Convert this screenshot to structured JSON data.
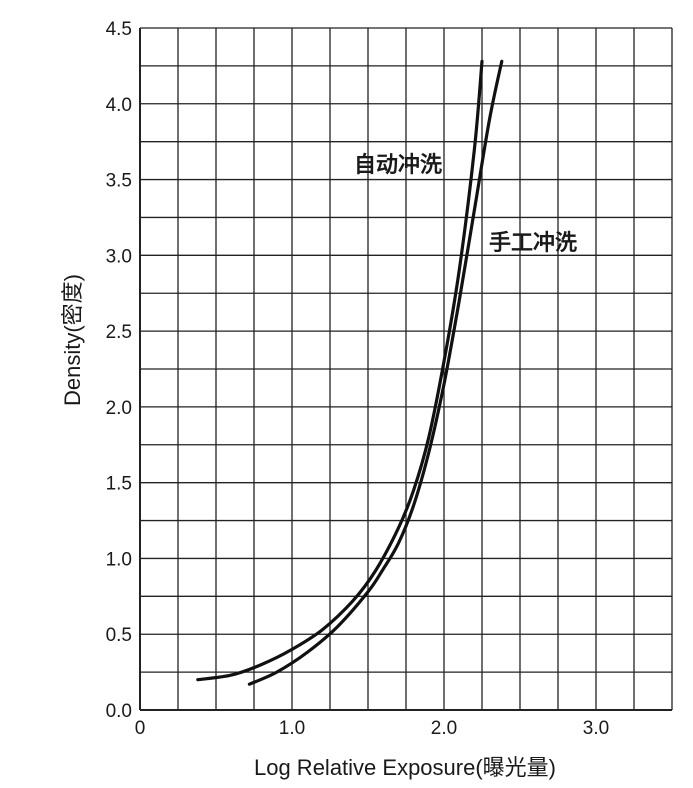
{
  "chart_data": {
    "type": "line",
    "xlabel": "Log Relative Exposure(曝光量)",
    "ylabel": "Density(密度)",
    "xlim": [
      0,
      3.5
    ],
    "ylim": [
      0,
      4.5
    ],
    "x_ticks": [
      "0",
      "1.0",
      "2.0",
      "3.0"
    ],
    "y_ticks": [
      "0.0",
      "0.5",
      "1.0",
      "1.5",
      "2.0",
      "2.5",
      "3.0",
      "3.5",
      "4.0",
      "4.5"
    ],
    "grid": true,
    "colors": {
      "line": "#111111",
      "grid": "#222222"
    },
    "series": [
      {
        "name": "自动冲洗",
        "x": [
          0.38,
          0.6,
          0.8,
          1.0,
          1.2,
          1.4,
          1.55,
          1.7,
          1.8,
          1.9,
          2.0,
          2.1,
          2.2,
          2.25
        ],
        "y": [
          0.2,
          0.23,
          0.3,
          0.4,
          0.53,
          0.72,
          0.92,
          1.2,
          1.45,
          1.8,
          2.3,
          2.9,
          3.7,
          4.28
        ]
      },
      {
        "name": "手工冲洗",
        "x": [
          0.72,
          0.9,
          1.1,
          1.3,
          1.5,
          1.6,
          1.7,
          1.8,
          1.9,
          2.0,
          2.1,
          2.2,
          2.3,
          2.38
        ],
        "y": [
          0.17,
          0.25,
          0.38,
          0.55,
          0.78,
          0.93,
          1.1,
          1.35,
          1.7,
          2.15,
          2.7,
          3.3,
          3.9,
          4.28
        ]
      }
    ]
  }
}
